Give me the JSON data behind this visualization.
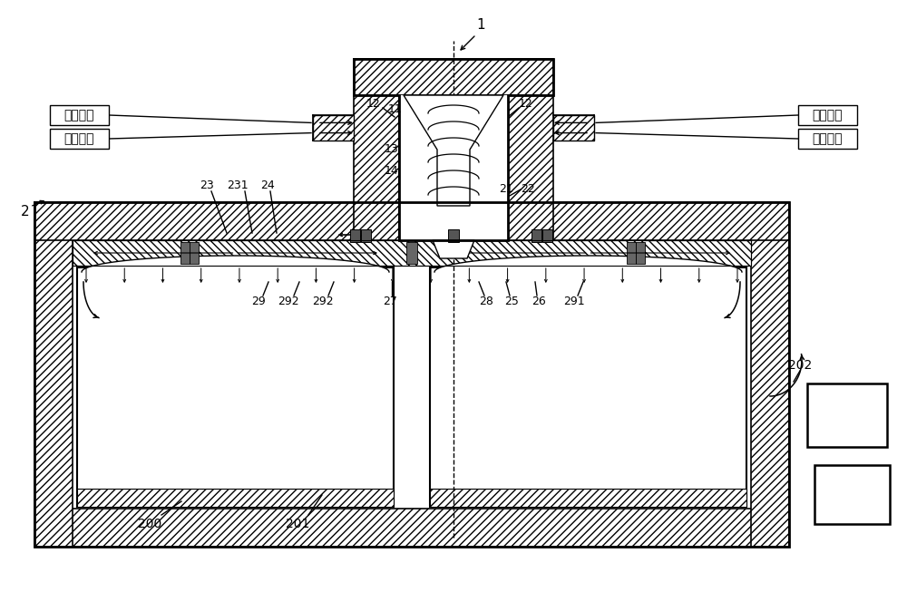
{
  "bg": "#ffffff",
  "lc": "#000000",
  "zh_left_top": "稀释气体",
  "zh_left_bot": "反应气体",
  "zh_right_top": "稀释气体",
  "zh_right_bot": "反应气体"
}
